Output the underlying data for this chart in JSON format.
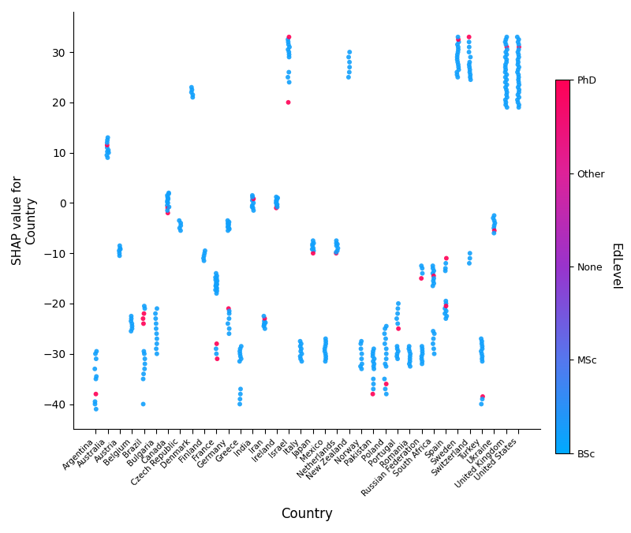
{
  "countries": [
    "Argentina",
    "Australia",
    "Austria",
    "Belgium",
    "Brazil",
    "Bulgaria",
    "Canada",
    "Czech Republic",
    "Denmark",
    "Finland",
    "France",
    "Germany",
    "Greece",
    "India",
    "Iran",
    "Ireland",
    "Israel",
    "Italy",
    "Japan",
    "Mexico",
    "Netherlands",
    "New Zealand",
    "Norway",
    "Pakistan",
    "Poland",
    "Portugal",
    "Romania",
    "Russian Federation",
    "South Africa",
    "Spain",
    "Sweden",
    "Switzerland",
    "Turkey",
    "Ukraine",
    "United Kingdom",
    "United States"
  ],
  "colorbar_label": "EdLevel",
  "ylabel": "SHAP value for\nCountry",
  "xlabel": "Country",
  "ylim": [
    -45,
    38
  ],
  "yticks": [
    -40,
    -30,
    -20,
    -10,
    0,
    10,
    20,
    30
  ],
  "background_color": "#ffffff",
  "point_size": 18,
  "alpha": 0.9,
  "seed": 42,
  "country_data": {
    "Argentina": {
      "values": [
        -30.0,
        -29.5,
        -31.0,
        -38.0,
        -39.5,
        -40.0,
        -33.0,
        -34.5,
        -35.0,
        -41.0
      ],
      "ed": [
        0,
        0,
        0,
        1,
        0,
        0,
        0,
        0,
        0,
        0
      ]
    },
    "Australia": {
      "values": [
        9.5,
        10.0,
        10.5,
        11.0,
        11.5,
        12.0,
        12.5,
        13.0,
        9.0,
        10.2
      ],
      "ed": [
        0,
        0,
        0,
        0,
        1,
        0,
        0,
        0,
        0,
        0
      ]
    },
    "Austria": {
      "values": [
        -9.0,
        -9.5,
        -10.0,
        -10.5,
        -8.5,
        -9.2
      ],
      "ed": [
        0,
        0,
        0,
        0,
        0,
        0
      ]
    },
    "Belgium": {
      "values": [
        -23.0,
        -24.0,
        -25.0,
        -23.5,
        -24.5,
        -22.5,
        -25.5
      ],
      "ed": [
        0,
        0,
        0,
        0,
        0,
        0,
        0
      ]
    },
    "Brazil": {
      "values": [
        -31.0,
        -32.0,
        -33.0,
        -34.0,
        -35.0,
        -30.0,
        -29.5,
        -40.0,
        -22.0,
        -23.0,
        -21.0,
        -24.0,
        -20.5
      ],
      "ed": [
        0,
        0,
        0,
        0,
        0,
        0,
        0,
        0,
        1,
        1,
        0,
        1,
        0
      ]
    },
    "Bulgaria": {
      "values": [
        -23.0,
        -24.0,
        -25.0,
        -22.0,
        -21.0,
        -26.0,
        -27.0,
        -28.0,
        -29.0,
        -30.0
      ],
      "ed": [
        0,
        0,
        0,
        0,
        0,
        0,
        0,
        0,
        0,
        0
      ]
    },
    "Canada": {
      "values": [
        1.5,
        0.5,
        -0.5,
        1.0,
        0.0,
        -1.0,
        2.0,
        -2.0,
        1.2,
        0.8,
        -1.5,
        1.8,
        0.2,
        -0.8
      ],
      "ed": [
        0,
        0,
        0,
        0,
        0,
        1,
        0,
        1,
        0,
        0,
        0,
        0,
        0,
        0
      ]
    },
    "Czech Republic": {
      "values": [
        -4.0,
        -5.0,
        -3.5,
        -4.5,
        -5.5
      ],
      "ed": [
        0,
        0,
        0,
        0,
        0
      ]
    },
    "Denmark": {
      "values": [
        21.0,
        21.5,
        22.0,
        22.5,
        23.0
      ],
      "ed": [
        0,
        0,
        0,
        0,
        0
      ]
    },
    "Finland": {
      "values": [
        -9.5,
        -10.0,
        -10.5,
        -11.0,
        -11.5
      ],
      "ed": [
        0,
        0,
        0,
        0,
        0
      ]
    },
    "France": {
      "values": [
        -14.0,
        -14.5,
        -15.0,
        -15.5,
        -16.0,
        -16.5,
        -17.0,
        -17.5,
        -18.0,
        -16.2,
        -15.8,
        -16.8,
        -16.3,
        -14.8,
        -15.3,
        -17.3,
        -28.0,
        -29.0,
        -30.0,
        -31.0
      ],
      "ed": [
        0,
        0,
        0,
        0,
        0,
        0,
        0,
        0,
        0,
        0,
        0,
        0,
        0,
        0,
        0,
        0,
        1,
        0,
        0,
        1
      ]
    },
    "Germany": {
      "values": [
        -4.0,
        -4.5,
        -5.0,
        -5.5,
        -3.5,
        -4.2,
        -4.8,
        -5.2,
        -3.8,
        -4.3,
        -22.0,
        -23.0,
        -24.0,
        -25.0,
        -21.0,
        -26.0,
        -21.5
      ],
      "ed": [
        0,
        0,
        0,
        0,
        0,
        0,
        0,
        0,
        0,
        0,
        0,
        0,
        0,
        0,
        1,
        0,
        0
      ]
    },
    "Greece": {
      "values": [
        -29.0,
        -29.5,
        -30.0,
        -30.5,
        -31.0,
        -28.5,
        -31.5,
        -37.0,
        -38.0,
        -39.0,
        -40.0
      ],
      "ed": [
        0,
        0,
        0,
        0,
        0,
        0,
        0,
        0,
        0,
        0,
        0
      ]
    },
    "India": {
      "values": [
        0.5,
        0.0,
        -0.5,
        1.0,
        -1.0,
        1.5,
        -1.5,
        0.8,
        -0.8,
        1.2
      ],
      "ed": [
        0,
        0,
        0,
        0,
        0,
        0,
        0,
        1,
        0,
        0
      ]
    },
    "Iran": {
      "values": [
        -23.5,
        -24.0,
        -24.5,
        -25.0,
        -23.0,
        -22.5,
        -24.2,
        -23.8
      ],
      "ed": [
        0,
        0,
        0,
        0,
        1,
        0,
        0,
        0
      ]
    },
    "Ireland": {
      "values": [
        0.5,
        0.0,
        -0.5,
        1.0,
        -1.0,
        0.8,
        -0.8,
        1.2,
        -0.3,
        0.3
      ],
      "ed": [
        0,
        0,
        0,
        0,
        1,
        0,
        0,
        0,
        0,
        0
      ]
    },
    "Israel": {
      "values": [
        29.0,
        29.5,
        30.0,
        30.5,
        31.0,
        31.5,
        32.0,
        32.5,
        33.0,
        24.0,
        25.0,
        26.0,
        20.0
      ],
      "ed": [
        0,
        0,
        0,
        0,
        0,
        0,
        0,
        0,
        1,
        0,
        0,
        0,
        1
      ]
    },
    "Italy": {
      "values": [
        -28.0,
        -28.5,
        -29.0,
        -29.5,
        -30.0,
        -30.5,
        -31.0,
        -27.5,
        -31.5
      ],
      "ed": [
        0,
        0,
        0,
        0,
        0,
        0,
        0,
        0,
        0
      ]
    },
    "Japan": {
      "values": [
        -8.0,
        -8.5,
        -9.0,
        -9.5,
        -10.0,
        -7.5,
        -8.2,
        -9.2
      ],
      "ed": [
        0,
        0,
        0,
        0,
        1,
        0,
        0,
        0
      ]
    },
    "Mexico": {
      "values": [
        -27.5,
        -28.0,
        -28.5,
        -29.0,
        -29.5,
        -30.0,
        -30.5,
        -31.0,
        -27.0,
        -31.5
      ],
      "ed": [
        0,
        0,
        0,
        0,
        0,
        0,
        0,
        0,
        0,
        0
      ]
    },
    "Netherlands": {
      "values": [
        -8.0,
        -8.5,
        -9.0,
        -9.5,
        -10.0,
        -7.5,
        -8.2,
        -9.8
      ],
      "ed": [
        0,
        0,
        0,
        0,
        1,
        0,
        0,
        0
      ]
    },
    "New Zealand": {
      "values": [
        25.0,
        26.0,
        27.0,
        28.0,
        29.0,
        30.0
      ],
      "ed": [
        0,
        0,
        0,
        0,
        0,
        0
      ]
    },
    "Norway": {
      "values": [
        -28.0,
        -29.0,
        -30.0,
        -31.0,
        -32.0,
        -33.0,
        -27.5,
        -32.5
      ],
      "ed": [
        0,
        0,
        0,
        0,
        0,
        0,
        0,
        0
      ]
    },
    "Pakistan": {
      "values": [
        -29.5,
        -30.0,
        -30.5,
        -31.0,
        -31.5,
        -32.0,
        -32.5,
        -33.0,
        -35.0,
        -36.0,
        -37.0,
        -38.0,
        -29.0
      ],
      "ed": [
        0,
        0,
        0,
        0,
        0,
        0,
        0,
        0,
        0,
        0,
        0,
        1,
        0
      ]
    },
    "Poland": {
      "values": [
        -25.0,
        -26.0,
        -27.0,
        -28.0,
        -29.0,
        -30.0,
        -31.0,
        -32.0,
        -35.0,
        -36.0,
        -37.0,
        -38.0,
        -24.5,
        -32.5
      ],
      "ed": [
        0,
        0,
        0,
        0,
        0,
        0,
        0,
        0,
        0,
        1,
        0,
        0,
        0,
        0
      ]
    },
    "Portugal": {
      "values": [
        -28.5,
        -29.0,
        -29.5,
        -30.0,
        -30.5,
        -31.0,
        -20.0,
        -21.0,
        -22.0,
        -23.0,
        -24.0,
        -25.0
      ],
      "ed": [
        0,
        0,
        0,
        0,
        0,
        0,
        0,
        0,
        0,
        0,
        0,
        1
      ]
    },
    "Romania": {
      "values": [
        -29.0,
        -29.5,
        -30.0,
        -30.5,
        -31.0,
        -31.5,
        -32.0,
        -28.5,
        -32.5
      ],
      "ed": [
        0,
        0,
        0,
        0,
        0,
        0,
        0,
        0,
        0
      ]
    },
    "Russian Federation": {
      "values": [
        -29.0,
        -29.5,
        -30.0,
        -30.5,
        -31.0,
        -31.5,
        -28.5,
        -32.0,
        -13.0,
        -14.0,
        -15.0,
        -12.5
      ],
      "ed": [
        0,
        0,
        0,
        0,
        0,
        0,
        0,
        0,
        0,
        0,
        1,
        0
      ]
    },
    "South Africa": {
      "values": [
        -13.0,
        -13.5,
        -14.0,
        -14.5,
        -15.0,
        -15.5,
        -16.0,
        -12.5,
        -16.5,
        -26.0,
        -27.0,
        -28.0,
        -29.0,
        -30.0,
        -25.5
      ],
      "ed": [
        0,
        0,
        0,
        1,
        0,
        0,
        0,
        0,
        0,
        0,
        0,
        0,
        0,
        0,
        0
      ]
    },
    "Spain": {
      "values": [
        -20.0,
        -21.0,
        -22.0,
        -23.0,
        -19.5,
        -20.5,
        -21.5,
        -22.5,
        -12.0,
        -13.0,
        -11.0,
        -13.5
      ],
      "ed": [
        0,
        0,
        0,
        0,
        0,
        1,
        0,
        0,
        0,
        0,
        1,
        0
      ]
    },
    "Sweden": {
      "values": [
        25.0,
        25.5,
        26.0,
        26.5,
        27.0,
        27.5,
        28.0,
        28.5,
        29.0,
        29.5,
        30.0,
        30.5,
        31.0,
        31.5,
        32.0,
        32.5,
        33.0
      ],
      "ed": [
        0,
        0,
        0,
        0,
        0,
        0,
        0,
        0,
        0,
        0,
        0,
        0,
        0,
        0,
        0,
        1,
        0
      ]
    },
    "Switzerland": {
      "values": [
        25.0,
        26.0,
        27.0,
        28.0,
        29.0,
        30.0,
        31.0,
        32.0,
        33.0,
        24.5,
        25.5,
        26.5,
        27.5,
        -10.0,
        -11.0,
        -12.0
      ],
      "ed": [
        0,
        0,
        0,
        0,
        0,
        0,
        0,
        0,
        1,
        0,
        0,
        0,
        0,
        0,
        0,
        0
      ]
    },
    "Turkey": {
      "values": [
        -27.5,
        -28.0,
        -28.5,
        -29.0,
        -29.5,
        -30.0,
        -30.5,
        -31.0,
        -38.5,
        -39.0,
        -40.0,
        -27.0,
        -31.5
      ],
      "ed": [
        0,
        0,
        0,
        0,
        0,
        0,
        0,
        0,
        1,
        0,
        0,
        0,
        0
      ]
    },
    "Ukraine": {
      "values": [
        -3.0,
        -3.5,
        -4.0,
        -4.5,
        -5.0,
        -5.5,
        -6.0,
        -2.5
      ],
      "ed": [
        0,
        0,
        0,
        0,
        0,
        1,
        0,
        0
      ]
    },
    "United Kingdom": {
      "values": [
        19.0,
        20.0,
        21.0,
        22.0,
        23.0,
        24.0,
        25.0,
        26.0,
        27.0,
        28.0,
        29.0,
        30.0,
        31.0,
        32.0,
        33.0,
        19.5,
        20.5,
        21.5,
        22.5,
        23.5,
        24.5,
        25.5,
        26.5,
        27.5,
        28.5,
        29.5,
        30.5,
        31.5,
        32.5
      ],
      "ed": [
        0,
        0,
        0,
        0,
        0,
        0,
        0,
        0,
        0,
        0,
        0,
        0,
        1,
        0,
        0,
        0,
        0,
        0,
        0,
        0,
        0,
        0,
        0,
        0,
        0,
        0,
        0,
        0,
        0
      ]
    },
    "United States": {
      "values": [
        19.0,
        20.0,
        21.0,
        22.0,
        23.0,
        24.0,
        25.0,
        26.0,
        27.0,
        28.0,
        29.0,
        30.0,
        31.0,
        32.0,
        33.0,
        19.5,
        20.5,
        21.5,
        22.5,
        23.5,
        24.5,
        25.5,
        26.5,
        27.5,
        28.5,
        29.5,
        30.5,
        31.5,
        32.5
      ],
      "ed": [
        0,
        0,
        0,
        0,
        0,
        0,
        0,
        0,
        0,
        0,
        0,
        0,
        1,
        0,
        0,
        0,
        0,
        0,
        0,
        0,
        0,
        0,
        0,
        0,
        0,
        0,
        0,
        0,
        0
      ]
    }
  },
  "jitter_strength": 0.08,
  "cmap_bsc": "#1e90ff",
  "cmap_msc": "#6a5acd",
  "cmap_none": "#9932cc",
  "cmap_other": "#cc1480",
  "cmap_phd": "#ff0066"
}
